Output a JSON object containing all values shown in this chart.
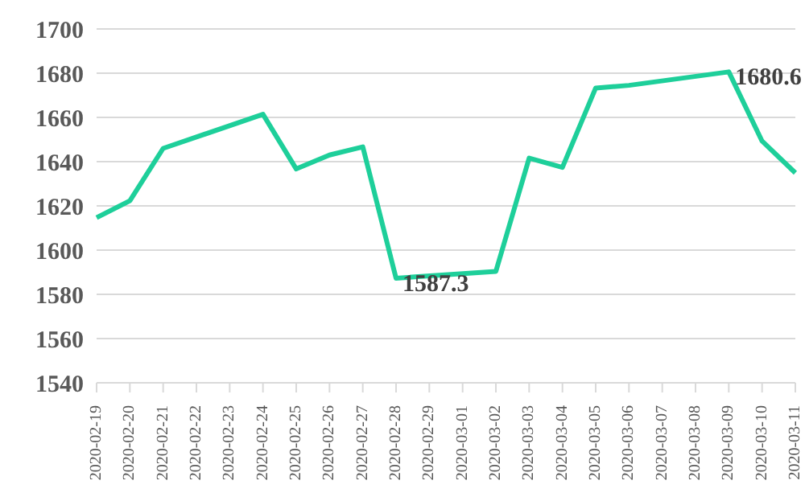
{
  "chart_data": {
    "type": "line",
    "categories": [
      "2020-02-19",
      "2020-02-20",
      "2020-02-21",
      "2020-02-22",
      "2020-02-23",
      "2020-02-24",
      "2020-02-25",
      "2020-02-26",
      "2020-02-27",
      "2020-02-28",
      "2020-02-29",
      "2020-03-01",
      "2020-03-02",
      "2020-03-03",
      "2020-03-04",
      "2020-03-05",
      "2020-03-06",
      "2020-03-07",
      "2020-03-08",
      "2020-03-09",
      "2020-03-10",
      "2020-03-11"
    ],
    "series": [
      {
        "color": "#1ecf9a",
        "values": [
          1614.7,
          1622.3,
          1646,
          null,
          null,
          1661.4,
          1636.7,
          1643,
          1646.7,
          1587.3,
          null,
          null,
          1590.4,
          1641.6,
          1637.4,
          1673.3,
          1674.5,
          null,
          null,
          1680.6,
          1649.3,
          1634.9
        ],
        "value_labels": [
          null,
          null,
          null,
          null,
          null,
          null,
          null,
          null,
          null,
          "1587.3",
          null,
          null,
          null,
          null,
          null,
          null,
          null,
          null,
          null,
          "1680.6",
          null,
          null
        ]
      }
    ],
    "ylim": [
      1540,
      1700
    ],
    "yticks": [
      1540,
      1560,
      1580,
      1600,
      1620,
      1640,
      1660,
      1680,
      1700
    ],
    "grid": "y",
    "marker": "none",
    "line_style": "solid"
  }
}
